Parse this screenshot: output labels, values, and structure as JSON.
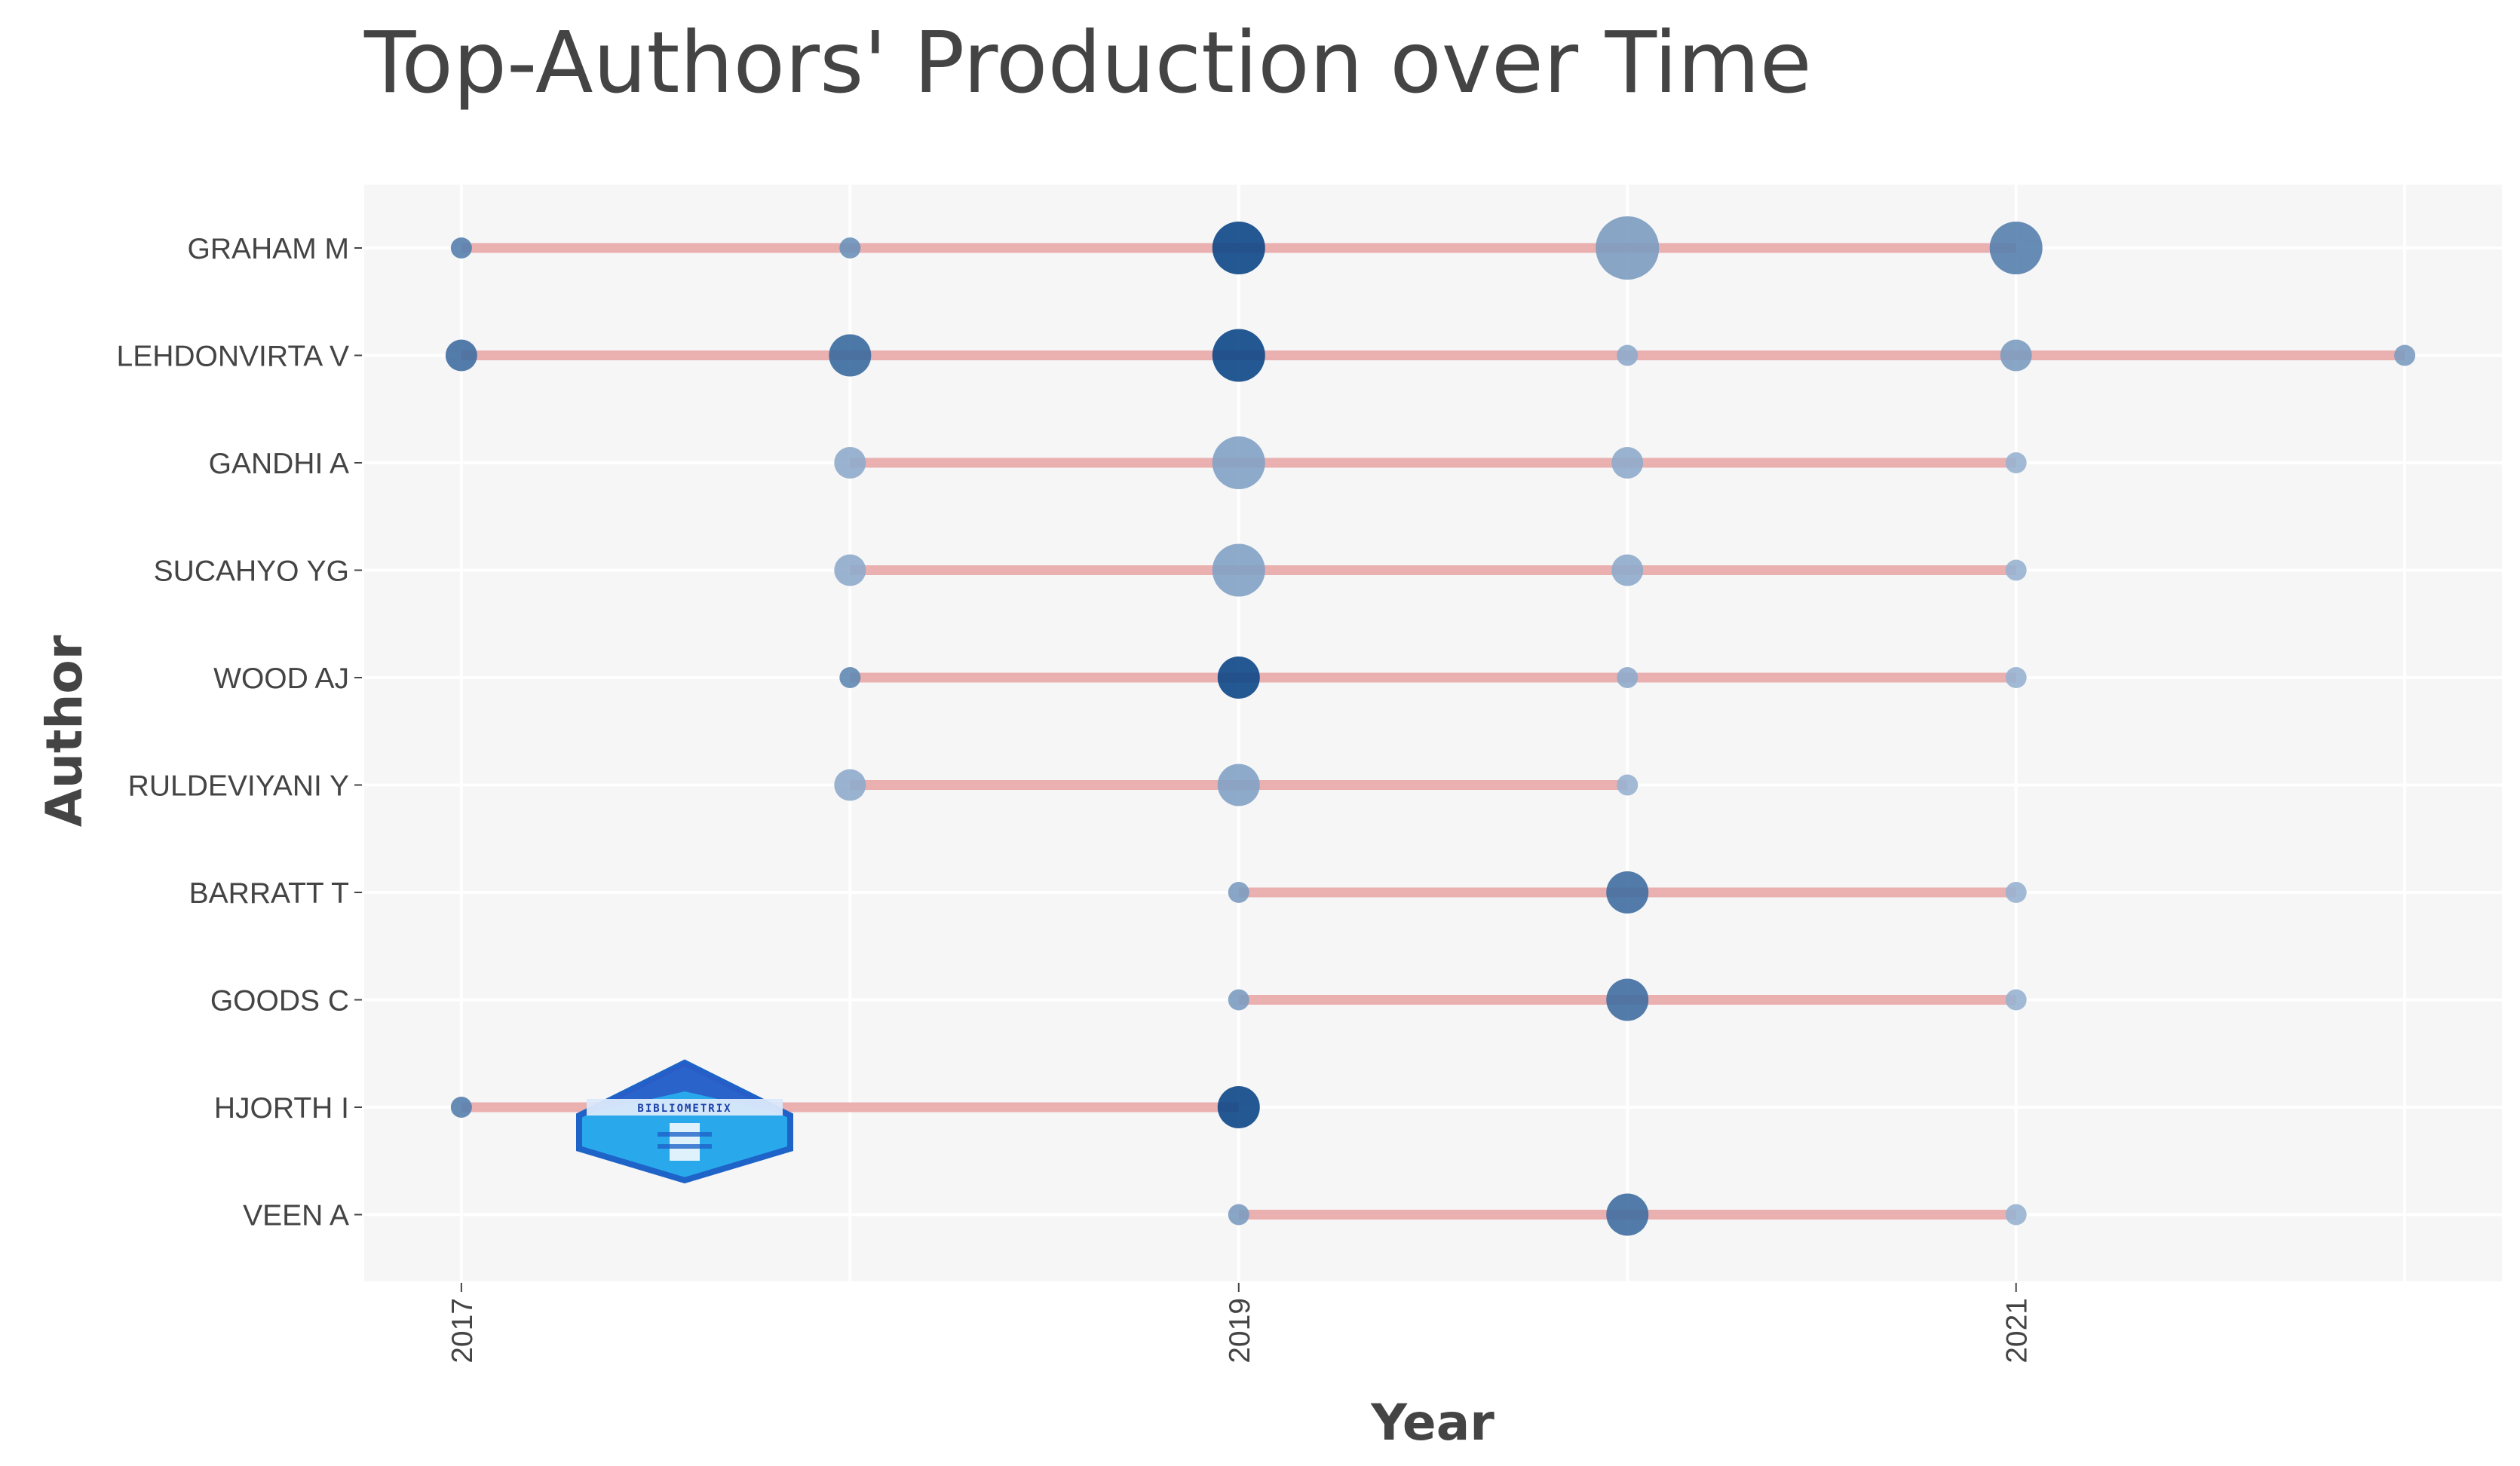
{
  "chart_data": {
    "type": "scatter",
    "title": "Top-Authors' Production over Time",
    "xlabel": "Year",
    "ylabel": "Author",
    "x_ticks": [
      2017,
      2019,
      2021
    ],
    "xlim": [
      2016.75,
      2022.25
    ],
    "grid": true,
    "colors": {
      "line": "#e8a4a4",
      "point_dark": "#0d4787",
      "point_light": "#a9bfd9",
      "plot_bg": "#f6f6f6",
      "gridline": "#ffffff"
    },
    "authors": [
      {
        "name": "GRAHAM M",
        "start": 2017,
        "end": 2021,
        "points": [
          {
            "year": 2017,
            "articles": 1,
            "tc": 2.5
          },
          {
            "year": 2018,
            "articles": 1,
            "tc": 1.5
          },
          {
            "year": 2019,
            "articles": 4,
            "tc": 10
          },
          {
            "year": 2020,
            "articles": 5,
            "tc": 1
          },
          {
            "year": 2021,
            "articles": 4,
            "tc": 2.5
          }
        ]
      },
      {
        "name": "LEHDONVIRTA V",
        "start": 2017,
        "end": 2022,
        "points": [
          {
            "year": 2017,
            "articles": 2,
            "tc": 4
          },
          {
            "year": 2018,
            "articles": 3,
            "tc": 4.5
          },
          {
            "year": 2019,
            "articles": 4,
            "tc": 10
          },
          {
            "year": 2020,
            "articles": 1,
            "tc": 0.5
          },
          {
            "year": 2021,
            "articles": 2,
            "tc": 1
          },
          {
            "year": 2022,
            "articles": 1,
            "tc": 1
          }
        ]
      },
      {
        "name": "GANDHI A",
        "start": 2018,
        "end": 2021,
        "points": [
          {
            "year": 2018,
            "articles": 2,
            "tc": 0.5
          },
          {
            "year": 2019,
            "articles": 4,
            "tc": 0.8
          },
          {
            "year": 2020,
            "articles": 2,
            "tc": 0.5
          },
          {
            "year": 2021,
            "articles": 1,
            "tc": 0.3
          }
        ]
      },
      {
        "name": "SUCAHYO YG",
        "start": 2018,
        "end": 2021,
        "points": [
          {
            "year": 2018,
            "articles": 2,
            "tc": 0.5
          },
          {
            "year": 2019,
            "articles": 4,
            "tc": 0.8
          },
          {
            "year": 2020,
            "articles": 2,
            "tc": 0.5
          },
          {
            "year": 2021,
            "articles": 1,
            "tc": 0.3
          }
        ]
      },
      {
        "name": "WOOD AJ",
        "start": 2018,
        "end": 2021,
        "points": [
          {
            "year": 2018,
            "articles": 1,
            "tc": 2
          },
          {
            "year": 2019,
            "articles": 3,
            "tc": 10
          },
          {
            "year": 2020,
            "articles": 1,
            "tc": 0.5
          },
          {
            "year": 2021,
            "articles": 1,
            "tc": 0.3
          }
        ]
      },
      {
        "name": "RULDEVIYANI Y",
        "start": 2018,
        "end": 2020,
        "points": [
          {
            "year": 2018,
            "articles": 2,
            "tc": 0.5
          },
          {
            "year": 2019,
            "articles": 3,
            "tc": 0.8
          },
          {
            "year": 2020,
            "articles": 1,
            "tc": 0.3
          }
        ]
      },
      {
        "name": "BARRATT T",
        "start": 2019,
        "end": 2021,
        "points": [
          {
            "year": 2019,
            "articles": 1,
            "tc": 1
          },
          {
            "year": 2020,
            "articles": 3,
            "tc": 4
          },
          {
            "year": 2021,
            "articles": 1,
            "tc": 0.3
          }
        ]
      },
      {
        "name": "GOODS C",
        "start": 2019,
        "end": 2021,
        "points": [
          {
            "year": 2019,
            "articles": 1,
            "tc": 1
          },
          {
            "year": 2020,
            "articles": 3,
            "tc": 4
          },
          {
            "year": 2021,
            "articles": 1,
            "tc": 0.3
          }
        ]
      },
      {
        "name": "HJORTH I",
        "start": 2017,
        "end": 2019,
        "points": [
          {
            "year": 2017,
            "articles": 1,
            "tc": 2.5
          },
          {
            "year": 2019,
            "articles": 3,
            "tc": 10
          }
        ]
      },
      {
        "name": "VEEN A",
        "start": 2019,
        "end": 2021,
        "points": [
          {
            "year": 2019,
            "articles": 1,
            "tc": 1
          },
          {
            "year": 2020,
            "articles": 3,
            "tc": 4
          },
          {
            "year": 2021,
            "articles": 1,
            "tc": 0.3
          }
        ]
      }
    ]
  },
  "watermark": {
    "text": "BIBLIOMETRIX",
    "icon": "bibliometrix-lighthouse-logo"
  }
}
